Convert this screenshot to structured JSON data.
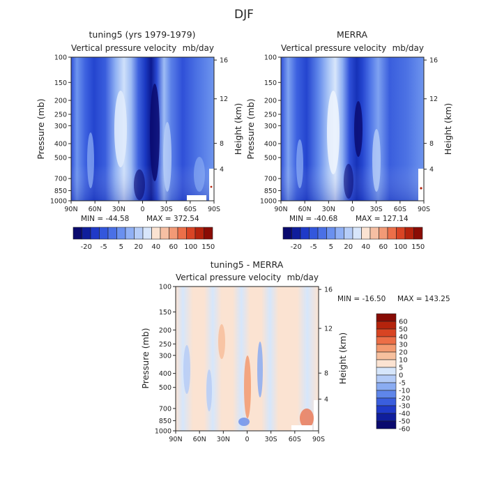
{
  "figure_title": "DJF",
  "chart_data": [
    {
      "type": "heatmap",
      "name": "model",
      "title": "tuning5 (yrs 1979-1979)",
      "subtitle_left": "Vertical pressure velocity",
      "subtitle_right": "mb/day",
      "xlabel": "",
      "ylabel": "Pressure (mb)",
      "ylabel_right": "Height (km)",
      "x_ticks": [
        "90N",
        "60N",
        "30N",
        "0",
        "30S",
        "60S",
        "90S"
      ],
      "x_range": [
        90,
        -90
      ],
      "y_ticks": [
        100,
        150,
        200,
        250,
        300,
        400,
        500,
        700,
        850,
        1000
      ],
      "y_range": [
        100,
        1000
      ],
      "y_scale": "log",
      "y_ticks_right": [
        16,
        12,
        8,
        4
      ],
      "min": -44.58,
      "max": 372.54,
      "min_label": "MIN = -44.58",
      "max_label": "MAX = 372.54",
      "colorbar_labels": [
        "-20",
        "-5",
        "5",
        "20",
        "40",
        "60",
        "100",
        "150"
      ],
      "colorbar_placement": "bottom"
    },
    {
      "type": "heatmap",
      "name": "obs",
      "title": "MERRA",
      "subtitle_left": "Vertical pressure velocity",
      "subtitle_right": "mb/day",
      "xlabel": "",
      "ylabel": "Pressure (mb)",
      "ylabel_right": "Height (km)",
      "x_ticks": [
        "90N",
        "60N",
        "30N",
        "0",
        "30S",
        "60S",
        "90S"
      ],
      "x_range": [
        90,
        -90
      ],
      "y_ticks": [
        100,
        150,
        200,
        250,
        300,
        400,
        500,
        700,
        850,
        1000
      ],
      "y_range": [
        100,
        1000
      ],
      "y_scale": "log",
      "y_ticks_right": [
        16,
        12,
        8,
        4
      ],
      "min": -40.68,
      "max": 127.14,
      "min_label": "MIN = -40.68",
      "max_label": "MAX = 127.14",
      "colorbar_labels": [
        "-20",
        "-5",
        "5",
        "20",
        "40",
        "60",
        "100",
        "150"
      ],
      "colorbar_placement": "bottom"
    },
    {
      "type": "heatmap",
      "name": "diff",
      "title": "tuning5 - MERRA",
      "subtitle_left": "Vertical pressure velocity",
      "subtitle_right": "mb/day",
      "xlabel": "",
      "ylabel": "Pressure (mb)",
      "ylabel_right": "Height (km)",
      "x_ticks": [
        "90N",
        "60N",
        "30N",
        "0",
        "30S",
        "60S",
        "90S"
      ],
      "x_range": [
        90,
        -90
      ],
      "y_ticks": [
        100,
        150,
        200,
        250,
        300,
        400,
        500,
        700,
        850,
        1000
      ],
      "y_range": [
        100,
        1000
      ],
      "y_scale": "log",
      "y_ticks_right": [
        16,
        12,
        8,
        4
      ],
      "min": -16.5,
      "max": 143.25,
      "min_label": "MIN = -16.50",
      "max_label": "MAX = 143.25",
      "colorbar_labels": [
        "60",
        "50",
        "40",
        "30",
        "20",
        "10",
        "5",
        "0",
        "-5",
        "-10",
        "-20",
        "-30",
        "-40",
        "-50",
        "-60"
      ],
      "colorbar_placement": "right"
    }
  ],
  "palettes": {
    "full": [
      "#0a0a6e",
      "#0f1e9c",
      "#1f3ac8",
      "#3357dc",
      "#4a70e6",
      "#6a90ef",
      "#90b0f5",
      "#b6cdf8",
      "#d8e6fb",
      "#fbe3d2",
      "#f6bfa3",
      "#f29a76",
      "#ec6f49",
      "#d94424",
      "#b5230d",
      "#8a0c05"
    ],
    "diff": [
      "#0a0a6e",
      "#0f1e9c",
      "#1f3ac8",
      "#3a5ede",
      "#5f86ea",
      "#8aacf2",
      "#b3cbf7",
      "#d6e6fb",
      "#fbe3d2",
      "#f7c09e",
      "#f39a70",
      "#ec6e46",
      "#d84422",
      "#b4230c",
      "#870b04"
    ]
  }
}
